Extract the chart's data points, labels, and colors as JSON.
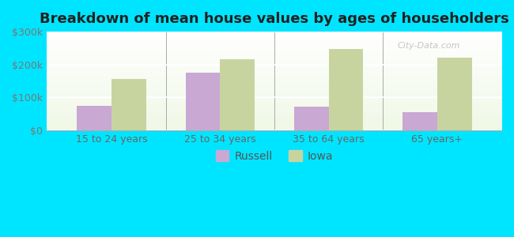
{
  "title": "Breakdown of mean house values by ages of householders",
  "categories": [
    "15 to 24 years",
    "25 to 34 years",
    "35 to 64 years",
    "65 years+"
  ],
  "russell_values": [
    75000,
    175000,
    72000,
    55000
  ],
  "iowa_values": [
    155000,
    215000,
    248000,
    220000
  ],
  "russell_color": "#c9a8d4",
  "iowa_color": "#c8d4a0",
  "bg_top": "#e8f5e8",
  "bg_bottom": "#d0eac0",
  "outer_bg": "#00e5ff",
  "ylim": [
    0,
    300000
  ],
  "yticks": [
    0,
    100000,
    200000,
    300000
  ],
  "ytick_labels": [
    "$0",
    "$100k",
    "$200k",
    "$300k"
  ],
  "legend_labels": [
    "Russell",
    "Iowa"
  ],
  "title_fontsize": 13,
  "bar_width": 0.32,
  "watermark": "City-Data.com"
}
